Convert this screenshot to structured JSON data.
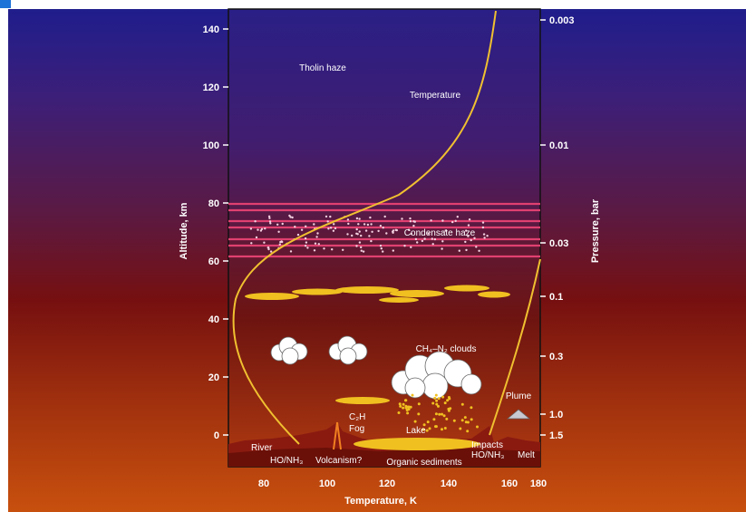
{
  "title_fragment": "",
  "diagram": {
    "axes": {
      "left_title": "Altitude, km",
      "right_title": "Pressure, bar",
      "bottom_title": "Temperature, K",
      "left_ticks": [
        "140",
        "120",
        "100",
        "80",
        "60",
        "40",
        "20",
        "0"
      ],
      "right_ticks": [
        "0.003",
        "0.01",
        "0.03",
        "0.1",
        "0.3",
        "1.0",
        "1.5"
      ],
      "bottom_ticks": [
        "80",
        "100",
        "120",
        "140",
        "160",
        "180"
      ]
    },
    "labels": {
      "tholin": "Tholin haze",
      "temperature": "Temperature",
      "condensate": "Condensate haze",
      "clouds": "CH₄–N₂ clouds",
      "plume": "Plume",
      "c2h": "C₂H",
      "fog": "Fog",
      "lake": "Lake",
      "river": "River",
      "hoh_left": "HO/NH₃",
      "volcanism": "Volcanism?",
      "organic": "Organic sediments",
      "impacts": "Impacts",
      "hoh_right": "HO/NH₃",
      "melt": "Melt"
    },
    "colors": {
      "temperature_curve": "#f0c030",
      "haze_lines": "#e04070",
      "clouds_yellow": "#f0c020"
    }
  }
}
